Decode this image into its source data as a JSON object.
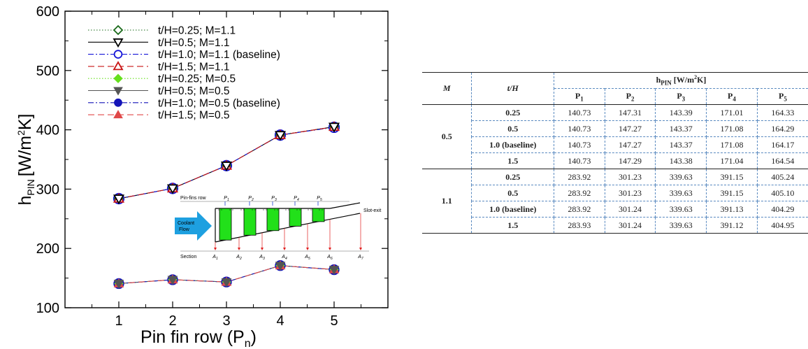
{
  "chart_data": {
    "type": "line",
    "xlabel": "Pin fin row (P",
    "xlabel_sub": "n",
    "xlabel_end": ")",
    "ylabel_main": "h",
    "ylabel_sub": "PIN",
    "ylabel_unit": "[W/m",
    "ylabel_sup": "2",
    "ylabel_end": "K]",
    "xlim": [
      0,
      6
    ],
    "ylim": [
      100,
      600
    ],
    "xticks": [
      1,
      2,
      3,
      4,
      5
    ],
    "yticks": [
      100,
      200,
      300,
      400,
      500,
      600
    ],
    "x": [
      1,
      2,
      3,
      4,
      5
    ],
    "series": [
      {
        "name": "t/H=0.25; M=1.1",
        "values": [
          283.92,
          301.23,
          339.63,
          391.15,
          405.24
        ],
        "color": "#1a6a1a",
        "marker": "diamond-open",
        "dash": "1.5,2.5"
      },
      {
        "name": "t/H=0.5; M=1.1",
        "values": [
          283.92,
          301.23,
          339.63,
          391.15,
          405.1
        ],
        "color": "#000000",
        "marker": "triangle-down-open",
        "dash": ""
      },
      {
        "name": "t/H=1.0; M=1.1 (baseline)",
        "values": [
          283.92,
          301.24,
          339.63,
          391.13,
          404.29
        ],
        "color": "#1414d8",
        "marker": "circle-open",
        "dash": "8,3,2,3"
      },
      {
        "name": "t/H=1.5; M=1.1",
        "values": [
          283.93,
          301.24,
          339.63,
          391.12,
          404.95
        ],
        "color": "#c81414",
        "marker": "triangle-up-open",
        "dash": "9,5"
      },
      {
        "name": "t/H=0.25; M=0.5",
        "values": [
          140.73,
          147.31,
          143.39,
          171.01,
          164.33
        ],
        "color": "#66e01e",
        "marker": "diamond-filled",
        "dash": "1.5,2.5"
      },
      {
        "name": "t/H=0.5; M=0.5",
        "values": [
          140.73,
          147.27,
          143.37,
          171.08,
          164.29
        ],
        "color": "#555555",
        "marker": "triangle-down-filled",
        "dash": ""
      },
      {
        "name": "t/H=1.0; M=0.5 (baseline)",
        "values": [
          140.73,
          147.27,
          143.37,
          171.08,
          164.17
        ],
        "color": "#1414b8",
        "marker": "circle-filled",
        "dash": "8,3,2,3"
      },
      {
        "name": "t/H=1.5; M=0.5",
        "values": [
          140.73,
          147.29,
          143.38,
          171.04,
          164.54
        ],
        "color": "#e04848",
        "marker": "triangle-up-filled",
        "dash": "9,5"
      }
    ],
    "legend_position": "top-left",
    "grid": false
  },
  "inset": {
    "row_label": "Pin-fins row",
    "p_labels": [
      "P",
      "P",
      "P",
      "P",
      "P"
    ],
    "p_subs": [
      "1",
      "2",
      "3",
      "4",
      "5"
    ],
    "a_labels": [
      "A",
      "A",
      "A",
      "A",
      "A",
      "A",
      "A"
    ],
    "a_subs": [
      "1",
      "2",
      "3",
      "4",
      "5",
      "6",
      "7"
    ],
    "section_label": "Section",
    "slot_exit_label": "Slot-exit",
    "coolant_line1": "Coolant",
    "coolant_line2": "Flow",
    "colors": {
      "fin": "#22e01a",
      "arrow": "#1ea0e0",
      "marker": "#e02020"
    }
  },
  "table": {
    "col_m": "M",
    "col_th": "t/H",
    "group_header_main": "h",
    "group_header_sub": "PIN",
    "group_header_unit": "[W/m",
    "group_header_sup": "2",
    "group_header_end": "K]",
    "p_cols": [
      {
        "main": "P",
        "sub": "1"
      },
      {
        "main": "P",
        "sub": "2"
      },
      {
        "main": "P",
        "sub": "3"
      },
      {
        "main": "P",
        "sub": "4"
      },
      {
        "main": "P",
        "sub": "5"
      }
    ],
    "groups": [
      {
        "m": "0.5",
        "rows": [
          {
            "th": "0.25",
            "vals": [
              "140.73",
              "147.31",
              "143.39",
              "171.01",
              "164.33"
            ]
          },
          {
            "th": "0.5",
            "vals": [
              "140.73",
              "147.27",
              "143.37",
              "171.08",
              "164.29"
            ]
          },
          {
            "th": "1.0 (baseline)",
            "vals": [
              "140.73",
              "147.27",
              "143.37",
              "171.08",
              "164.17"
            ]
          },
          {
            "th": "1.5",
            "vals": [
              "140.73",
              "147.29",
              "143.38",
              "171.04",
              "164.54"
            ]
          }
        ]
      },
      {
        "m": "1.1",
        "rows": [
          {
            "th": "0.25",
            "vals": [
              "283.92",
              "301.23",
              "339.63",
              "391.15",
              "405.24"
            ]
          },
          {
            "th": "0.5",
            "vals": [
              "283.92",
              "301.23",
              "339.63",
              "391.15",
              "405.10"
            ]
          },
          {
            "th": "1.0 (baseline)",
            "vals": [
              "283.92",
              "301.24",
              "339.63",
              "391.13",
              "404.29"
            ]
          },
          {
            "th": "1.5",
            "vals": [
              "283.93",
              "301.24",
              "339.63",
              "391.12",
              "404.95"
            ]
          }
        ]
      }
    ]
  }
}
